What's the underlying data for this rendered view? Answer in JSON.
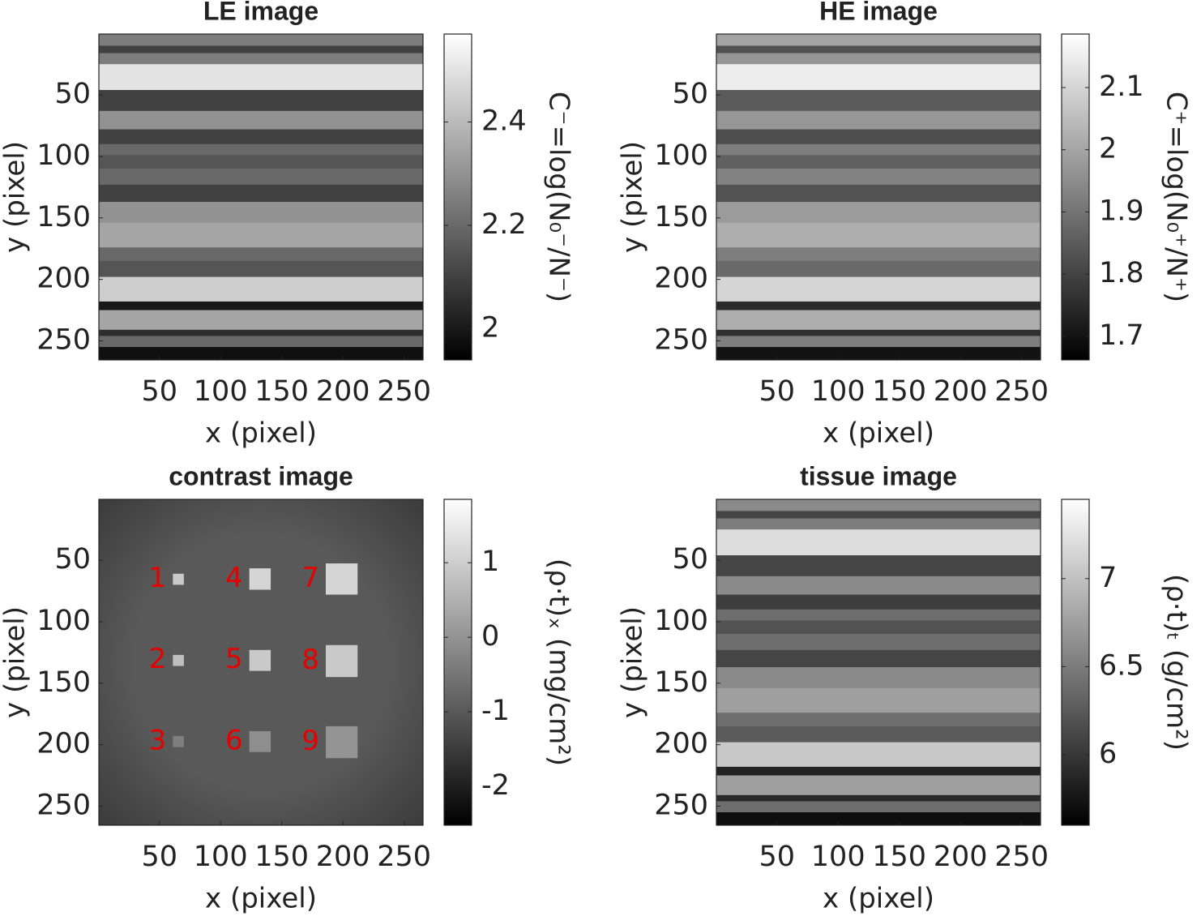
{
  "chart_data": [
    {
      "type": "image",
      "title": "LE image",
      "xlabel": "x (pixel)",
      "ylabel": "y (pixel)",
      "xlim": [
        0.5,
        265.5
      ],
      "ylim": [
        0.5,
        265.5
      ],
      "y_direction": "reverse",
      "xticks": [
        50,
        100,
        150,
        200,
        250
      ],
      "yticks": [
        50,
        100,
        150,
        200,
        250
      ],
      "colormap": "gray",
      "clim": [
        1.94,
        2.57
      ],
      "cticks": [
        2,
        2.2,
        2.4
      ],
      "colorbar_label": "C⁻=log(N₀⁻/N⁻)",
      "row_edges": [
        0.5,
        10,
        16,
        25,
        46,
        63,
        78,
        90,
        99,
        110,
        123,
        137,
        154,
        174,
        185,
        198,
        218,
        225,
        241,
        246,
        255,
        265.5
      ],
      "row_values": [
        2.25,
        2.1,
        2.25,
        2.5,
        2.1,
        2.3,
        2.1,
        2.2,
        2.15,
        2.2,
        2.1,
        2.3,
        2.35,
        2.2,
        2.15,
        2.45,
        2.0,
        2.35,
        2.05,
        2.2,
        1.98
      ]
    },
    {
      "type": "image",
      "title": "HE image",
      "xlabel": "x (pixel)",
      "ylabel": "y (pixel)",
      "xlim": [
        0.5,
        265.5
      ],
      "ylim": [
        0.5,
        265.5
      ],
      "y_direction": "reverse",
      "xticks": [
        50,
        100,
        150,
        200,
        250
      ],
      "yticks": [
        50,
        100,
        150,
        200,
        250
      ],
      "colormap": "gray",
      "clim": [
        1.662,
        2.186
      ],
      "cticks": [
        1.7,
        1.8,
        1.9,
        2,
        2.1
      ],
      "colorbar_label": "C⁺=log(N₀⁺/N⁺)",
      "row_edges": [
        0.5,
        10,
        16,
        25,
        46,
        63,
        78,
        90,
        99,
        110,
        123,
        137,
        154,
        174,
        185,
        198,
        218,
        225,
        241,
        246,
        255,
        265.5
      ],
      "row_values": [
        2.0,
        1.83,
        1.97,
        2.15,
        1.85,
        1.97,
        1.82,
        1.92,
        1.86,
        1.93,
        1.83,
        1.98,
        2.02,
        1.92,
        1.88,
        2.1,
        1.75,
        2.02,
        1.76,
        1.92,
        1.7
      ]
    },
    {
      "type": "image",
      "title": "contrast image",
      "xlabel": "x (pixel)",
      "ylabel": "y (pixel)",
      "xlim": [
        0.5,
        265.5
      ],
      "ylim": [
        0.5,
        265.5
      ],
      "y_direction": "reverse",
      "xticks": [
        50,
        100,
        150,
        200,
        250
      ],
      "yticks": [
        50,
        100,
        150,
        200,
        250
      ],
      "colormap": "gray",
      "clim": [
        -2.52,
        1.85
      ],
      "cticks": [
        -2,
        -1,
        0,
        1
      ],
      "colorbar_label": "(ρ·t)ₓ (mg/cm²)",
      "background": -1,
      "patches": [
        {
          "label": "1",
          "x": [
            61,
            70
          ],
          "y": [
            61,
            70
          ],
          "value": 1.1
        },
        {
          "label": "2",
          "x": [
            61,
            70
          ],
          "y": [
            127,
            136
          ],
          "value": 0.9
        },
        {
          "label": "3",
          "x": [
            61,
            70
          ],
          "y": [
            193,
            202
          ],
          "value": -0.3
        },
        {
          "label": "4",
          "x": [
            123.5,
            141
          ],
          "y": [
            56.6,
            74
          ],
          "value": 1.3
        },
        {
          "label": "5",
          "x": [
            123.5,
            141
          ],
          "y": [
            123,
            140
          ],
          "value": 1.1
        },
        {
          "label": "6",
          "x": [
            123.5,
            141
          ],
          "y": [
            189,
            206
          ],
          "value": 0.0
        },
        {
          "label": "7",
          "x": [
            186,
            212
          ],
          "y": [
            52.6,
            78
          ],
          "value": 1.3
        },
        {
          "label": "8",
          "x": [
            186,
            212
          ],
          "y": [
            119,
            145
          ],
          "value": 1.1
        },
        {
          "label": "9",
          "x": [
            186,
            212
          ],
          "y": [
            185,
            211
          ],
          "value": 0.1
        }
      ]
    },
    {
      "type": "image",
      "title": "tissue image",
      "xlabel": "x (pixel)",
      "ylabel": "y (pixel)",
      "xlim": [
        0.5,
        265.5
      ],
      "ylim": [
        0.5,
        265.5
      ],
      "y_direction": "reverse",
      "xticks": [
        50,
        100,
        150,
        200,
        250
      ],
      "yticks": [
        50,
        100,
        150,
        200,
        250
      ],
      "colormap": "gray",
      "clim": [
        5.6,
        7.45
      ],
      "cticks": [
        6,
        6.5,
        7
      ],
      "colorbar_label": "(ρ·t)ₜ (g/cm²)",
      "row_edges": [
        0.5,
        10,
        16,
        25,
        46,
        63,
        78,
        90,
        99,
        110,
        123,
        137,
        154,
        174,
        185,
        198,
        218,
        225,
        241,
        246,
        255,
        265.5
      ],
      "row_values": [
        6.6,
        6.1,
        6.5,
        7.2,
        6.1,
        6.6,
        6.05,
        6.4,
        6.2,
        6.4,
        6.1,
        6.6,
        6.75,
        6.4,
        6.25,
        7.05,
        5.85,
        6.75,
        5.9,
        6.4,
        5.7
      ]
    }
  ]
}
